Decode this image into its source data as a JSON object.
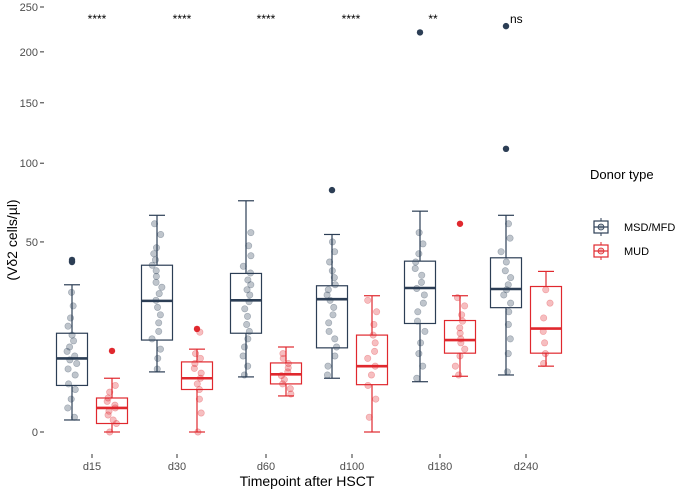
{
  "chart_data": {
    "type": "boxplot",
    "xlabel": "Timepoint after HSCT",
    "ylabel": "(Vδ2 cells/µl)",
    "ylim": [
      0,
      250
    ],
    "y_scale": "sqrt",
    "y_ticks": [
      0,
      50,
      100,
      150,
      200,
      250
    ],
    "categories": [
      "d15",
      "d30",
      "d60",
      "d100",
      "d180",
      "d240"
    ],
    "significance": [
      "****",
      "****",
      "****",
      "****",
      "**",
      "ns"
    ],
    "legend": {
      "title": "Donor type",
      "position": "right"
    },
    "series": [
      {
        "name": "MSD/MFD",
        "color": "#2c3e55",
        "boxes": [
          {
            "min": 0.2,
            "q1": 3.0,
            "median": 7.5,
            "q3": 13.5,
            "max": 30,
            "outliers": [
              40,
              41
            ]
          },
          {
            "min": 5.0,
            "q1": 11.7,
            "median": 23.8,
            "q3": 38.5,
            "max": 65,
            "outliers": []
          },
          {
            "min": 4.2,
            "q1": 13.5,
            "median": 24,
            "q3": 34.8,
            "max": 74,
            "outliers": []
          },
          {
            "min": 4.0,
            "q1": 9.8,
            "median": 24.4,
            "q3": 29.6,
            "max": 54,
            "outliers": [
              81
            ]
          },
          {
            "min": 3.5,
            "q1": 16.3,
            "median": 28.7,
            "q3": 40.4,
            "max": 67.5,
            "outliers": [
              221
            ]
          },
          {
            "min": 4.5,
            "q1": 21.4,
            "median": 28.3,
            "q3": 42,
            "max": 65,
            "outliers": [
              111,
              228
            ]
          }
        ],
        "points": [
          [
            0.3,
            0.8,
            1.5,
            2.5,
            3.2,
            4.5,
            5.5,
            6.5,
            7.2,
            8.0,
            9.0,
            10.0,
            11.5,
            13.0,
            15.5,
            18.0,
            22.0,
            27.0
          ],
          [
            5.5,
            7.5,
            9.5,
            12.0,
            14.0,
            16.5,
            19.0,
            21.5,
            24.0,
            26.5,
            29.0,
            31.0,
            33.5,
            36.0,
            38.5,
            41.0,
            44.0,
            47.0,
            54.0,
            60.0
          ],
          [
            4.5,
            6.0,
            8.0,
            10.0,
            12.0,
            14.0,
            16.0,
            18.5,
            21.0,
            23.5,
            26.0,
            28.0,
            30.0,
            32.0,
            35.0,
            38.0,
            43.0,
            48.0,
            55.0
          ],
          [
            4.5,
            6.0,
            8.0,
            10.0,
            12.0,
            14.0,
            16.5,
            19.0,
            21.5,
            24.0,
            26.0,
            28.0,
            30.0,
            33.0,
            36.0,
            40.0,
            45.0,
            50.0
          ],
          [
            4.0,
            6.0,
            8.5,
            11.0,
            14.0,
            17.0,
            20.0,
            23.0,
            26.0,
            28.5,
            31.0,
            34.0,
            37.0,
            40.0,
            44.0,
            49.0,
            55.0
          ],
          [
            5.0,
            8.5,
            12.0,
            16.0,
            20.0,
            23.0,
            26.0,
            28.0,
            30.0,
            33.0,
            36.0,
            40.0,
            45.0,
            52.0,
            60.0
          ]
        ]
      },
      {
        "name": "MUD",
        "color": "#e0282e",
        "boxes": [
          {
            "min": 0,
            "q1": 0.1,
            "median": 0.8,
            "q3": 1.6,
            "max": 4.0,
            "outliers": [
              9.1
            ]
          },
          {
            "min": 0,
            "q1": 2.5,
            "median": 4.0,
            "q3": 6.8,
            "max": 9.5,
            "outliers": [
              14.7
            ]
          },
          {
            "min": 1.8,
            "q1": 3.2,
            "median": 4.6,
            "q3": 6.6,
            "max": 10.0,
            "outliers": []
          },
          {
            "min": 0,
            "q1": 3.1,
            "median": 6.0,
            "q3": 13.0,
            "max": 25.7,
            "outliers": []
          },
          {
            "min": 4.3,
            "q1": 8.6,
            "median": 11.7,
            "q3": 17.2,
            "max": 25.7,
            "outliers": [
              60
            ]
          },
          {
            "min": 6.0,
            "q1": 8.6,
            "median": 14.8,
            "q3": 29.3,
            "max": 35.7,
            "outliers": []
          }
        ],
        "points": [
          [
            0,
            0.1,
            0.2,
            0.4,
            0.6,
            0.8,
            1.0,
            1.3,
            1.6,
            2.2,
            3.0
          ],
          [
            0,
            0.5,
            1.5,
            2.5,
            3.2,
            4.0,
            4.8,
            5.6,
            6.5,
            7.5,
            8.5,
            13.8
          ],
          [
            2.0,
            2.6,
            3.2,
            3.8,
            4.4,
            5.0,
            5.7,
            6.5,
            7.5,
            8.5
          ],
          [
            0.3,
            1.5,
            3.0,
            4.5,
            6.0,
            7.5,
            9.0,
            11.0,
            13.0,
            16.0,
            20.0,
            24.0
          ],
          [
            4.5,
            6.0,
            8.0,
            9.5,
            11.0,
            12.0,
            13.5,
            15.0,
            17.0,
            19.0,
            22.0,
            25.0
          ],
          [
            6.5,
            8.5,
            11.0,
            14.0,
            18.0,
            23.0,
            28.0
          ]
        ]
      }
    ]
  }
}
